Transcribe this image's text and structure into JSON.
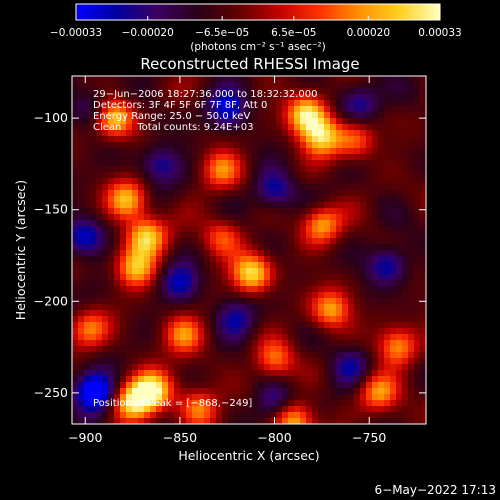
{
  "chart_data": {
    "type": "heatmap",
    "title": "Reconstructed RHESSI Image",
    "xlabel": "Heliocentric X (arcsec)",
    "ylabel": "Heliocentric Y (arcsec)",
    "xlim": [
      -907,
      -720
    ],
    "ylim": [
      -267,
      -77
    ],
    "xticks": [
      -900,
      -850,
      -800,
      -750
    ],
    "yticks": [
      -100,
      -150,
      -200,
      -250
    ],
    "x_tick_labels": [
      "−900",
      "−850",
      "−800",
      "−750"
    ],
    "y_tick_labels": [
      "−100",
      "−150",
      "−200",
      "−250"
    ],
    "colorbar": {
      "range": [
        -0.00033,
        0.00033
      ],
      "tick_values": [
        -0.00033,
        -0.0002,
        -6.5e-05,
        6.5e-05,
        0.0002,
        0.00033
      ],
      "tick_labels": [
        "−0.00033",
        "−0.00020",
        "−6.5e−05",
        "6.5e−05",
        "0.00020",
        "0.00033"
      ],
      "unit_label": "(photons cm⁻² s⁻¹ asec⁻²)",
      "colors": [
        "#0000ff",
        "#0000a0",
        "#3a0060",
        "#2a0018",
        "#600000",
        "#c00000",
        "#ff3000",
        "#ff9000",
        "#ffd020",
        "#ffffc0"
      ]
    },
    "annotations": [
      "29−Jun−2006 18:27:36.000 to 18:32:32.000",
      "Detectors: 3F 4F 5F 6F 7F 8F, Att 0",
      "Energy Range: 25.0 − 50.0 keV",
      "Clean     Total counts: 9.24E+03"
    ],
    "peak_label": "Position of Peak = [−868,−249]",
    "peak_position": [
      -868,
      -249
    ],
    "bright_regions": [
      {
        "x": -865,
        "y": -249,
        "level": 1.0
      },
      {
        "x": -875,
        "y": -255,
        "level": 0.85
      },
      {
        "x": -783,
        "y": -98,
        "level": 0.95
      },
      {
        "x": -775,
        "y": -110,
        "level": 0.8
      },
      {
        "x": -885,
        "y": -100,
        "level": 0.85
      },
      {
        "x": -878,
        "y": -145,
        "level": 0.75
      },
      {
        "x": -868,
        "y": -165,
        "level": 0.85
      },
      {
        "x": -873,
        "y": -182,
        "level": 0.75
      },
      {
        "x": -812,
        "y": -185,
        "level": 0.9
      },
      {
        "x": -848,
        "y": -218,
        "level": 0.65
      },
      {
        "x": -775,
        "y": -158,
        "level": 0.7
      },
      {
        "x": -770,
        "y": -205,
        "level": 0.7
      },
      {
        "x": -735,
        "y": -225,
        "level": 0.7
      },
      {
        "x": -790,
        "y": -265,
        "level": 0.75
      },
      {
        "x": -745,
        "y": -250,
        "level": 0.65
      },
      {
        "x": -828,
        "y": -128,
        "level": 0.6
      },
      {
        "x": -800,
        "y": -232,
        "level": 0.6
      },
      {
        "x": -898,
        "y": -215,
        "level": 0.55
      },
      {
        "x": -840,
        "y": -258,
        "level": 0.6
      },
      {
        "x": -757,
        "y": -112,
        "level": 0.55
      },
      {
        "x": -828,
        "y": -165,
        "level": 0.5
      }
    ],
    "dark_regions": [
      {
        "x": -895,
        "y": -250,
        "level": -1.0
      },
      {
        "x": -825,
        "y": -95,
        "level": -0.6
      },
      {
        "x": -900,
        "y": -165,
        "level": -0.6
      },
      {
        "x": -850,
        "y": -190,
        "level": -0.55
      },
      {
        "x": -800,
        "y": -140,
        "level": -0.55
      },
      {
        "x": -740,
        "y": -180,
        "level": -0.55
      },
      {
        "x": -755,
        "y": -92,
        "level": -0.5
      },
      {
        "x": -860,
        "y": -125,
        "level": -0.5
      },
      {
        "x": -820,
        "y": -210,
        "level": -0.5
      },
      {
        "x": -760,
        "y": -235,
        "level": -0.45
      },
      {
        "x": -895,
        "y": -95,
        "level": -0.4
      },
      {
        "x": -800,
        "y": -255,
        "level": -0.45
      }
    ]
  },
  "footer": {
    "timestamp": "6−May−2022 17:13"
  }
}
